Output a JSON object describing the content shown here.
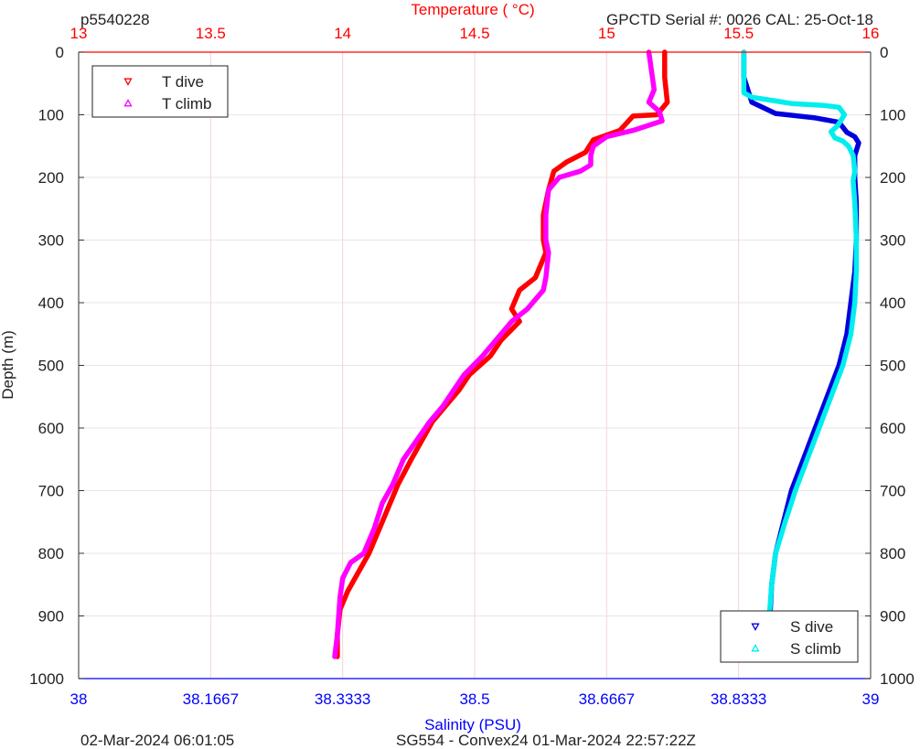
{
  "header": {
    "profile_id": "p5540228",
    "top_axis_label": "Temperature (    °C)",
    "serial_text": "GPCTD Serial #: 0026 CAL: 25-Oct-18"
  },
  "footer": {
    "plot_date": "02-Mar-2024 06:01:05",
    "mission_text": "SG554 - Convex24 01-Mar-2024 22:57:22Z"
  },
  "colors": {
    "t_dive": "#ff0000",
    "t_climb": "#ff00ff",
    "s_dive": "#0000dd",
    "s_climb": "#00eeee",
    "temperature_axis": "#ff0000",
    "salinity_axis": "#0000ff",
    "grid": "#e6e6e6",
    "temp_grid": "#f4d6d6"
  },
  "chart_data": {
    "type": "line",
    "ylabel": "Depth (m)",
    "xlabel_bottom": "Salinity (PSU)",
    "xlabel_top": "Temperature (    °C)",
    "ylim": [
      0,
      1000
    ],
    "y_reversed": true,
    "y_ticks": [
      "0",
      "100",
      "200",
      "300",
      "400",
      "500",
      "600",
      "700",
      "800",
      "900",
      "1000"
    ],
    "temperature_axis": {
      "range": [
        13,
        16
      ],
      "ticks": [
        13,
        13.5,
        14,
        14.5,
        15,
        15.5,
        16
      ],
      "tick_labels": [
        "13",
        "13.5",
        "14",
        "14.5",
        "15",
        "15.5",
        "16"
      ]
    },
    "salinity_axis": {
      "range": [
        38,
        39
      ],
      "ticks": [
        38,
        38.1667,
        38.3333,
        38.5,
        38.6667,
        38.8333,
        39
      ],
      "tick_labels": [
        "38",
        "38.1667",
        "38.3333",
        "38.5",
        "38.6667",
        "38.8333",
        "39"
      ]
    },
    "legend_temperature": {
      "placement": "top-left",
      "entries": [
        "T dive",
        "T climb"
      ]
    },
    "legend_salinity": {
      "placement": "bottom-right",
      "entries": [
        "S dive",
        "S climb"
      ]
    },
    "grid": true,
    "series": [
      {
        "name": "T dive",
        "axis": "temperature",
        "marker": "triangle-down",
        "points": [
          [
            15.22,
            0
          ],
          [
            15.22,
            40
          ],
          [
            15.23,
            80
          ],
          [
            15.19,
            100
          ],
          [
            15.1,
            102
          ],
          [
            15.05,
            125
          ],
          [
            14.95,
            140
          ],
          [
            14.92,
            160
          ],
          [
            14.85,
            175
          ],
          [
            14.8,
            190
          ],
          [
            14.78,
            220
          ],
          [
            14.76,
            260
          ],
          [
            14.76,
            300
          ],
          [
            14.77,
            320
          ],
          [
            14.73,
            360
          ],
          [
            14.67,
            380
          ],
          [
            14.64,
            410
          ],
          [
            14.67,
            430
          ],
          [
            14.6,
            460
          ],
          [
            14.56,
            485
          ],
          [
            14.48,
            515
          ],
          [
            14.44,
            540
          ],
          [
            14.39,
            565
          ],
          [
            14.34,
            590
          ],
          [
            14.3,
            620
          ],
          [
            14.26,
            650
          ],
          [
            14.21,
            690
          ],
          [
            14.18,
            720
          ],
          [
            14.14,
            760
          ],
          [
            14.1,
            800
          ],
          [
            14.06,
            830
          ],
          [
            14.02,
            860
          ],
          [
            13.99,
            890
          ],
          [
            13.98,
            930
          ],
          [
            13.98,
            965
          ]
        ]
      },
      {
        "name": "T climb",
        "axis": "temperature",
        "marker": "triangle-up",
        "points": [
          [
            15.16,
            0
          ],
          [
            15.17,
            30
          ],
          [
            15.18,
            60
          ],
          [
            15.16,
            80
          ],
          [
            15.2,
            95
          ],
          [
            15.21,
            110
          ],
          [
            15.1,
            125
          ],
          [
            15.0,
            135
          ],
          [
            14.95,
            150
          ],
          [
            14.94,
            165
          ],
          [
            14.94,
            180
          ],
          [
            14.9,
            190
          ],
          [
            14.82,
            200
          ],
          [
            14.78,
            220
          ],
          [
            14.77,
            260
          ],
          [
            14.77,
            300
          ],
          [
            14.78,
            320
          ],
          [
            14.77,
            360
          ],
          [
            14.76,
            380
          ],
          [
            14.7,
            410
          ],
          [
            14.64,
            430
          ],
          [
            14.58,
            460
          ],
          [
            14.53,
            485
          ],
          [
            14.46,
            515
          ],
          [
            14.42,
            540
          ],
          [
            14.38,
            565
          ],
          [
            14.33,
            590
          ],
          [
            14.28,
            620
          ],
          [
            14.23,
            650
          ],
          [
            14.19,
            690
          ],
          [
            14.15,
            720
          ],
          [
            14.12,
            760
          ],
          [
            14.08,
            800
          ],
          [
            14.03,
            815
          ],
          [
            14.0,
            840
          ],
          [
            13.99,
            870
          ],
          [
            13.98,
            930
          ],
          [
            13.97,
            965
          ]
        ]
      },
      {
        "name": "S dive",
        "axis": "salinity",
        "marker": "triangle-down",
        "points": [
          [
            38.84,
            0
          ],
          [
            38.84,
            40
          ],
          [
            38.85,
            80
          ],
          [
            38.88,
            98
          ],
          [
            38.93,
            105
          ],
          [
            38.96,
            112
          ],
          [
            38.97,
            128
          ],
          [
            38.98,
            135
          ],
          [
            38.985,
            145
          ],
          [
            38.98,
            165
          ],
          [
            38.98,
            200
          ],
          [
            38.982,
            240
          ],
          [
            38.982,
            300
          ],
          [
            38.98,
            350
          ],
          [
            38.975,
            400
          ],
          [
            38.97,
            450
          ],
          [
            38.96,
            500
          ],
          [
            38.945,
            550
          ],
          [
            38.93,
            600
          ],
          [
            38.915,
            650
          ],
          [
            38.9,
            700
          ],
          [
            38.89,
            750
          ],
          [
            38.88,
            800
          ],
          [
            38.875,
            850
          ],
          [
            38.873,
            900
          ],
          [
            38.872,
            965
          ]
        ]
      },
      {
        "name": "S climb",
        "axis": "salinity",
        "marker": "triangle-up",
        "points": [
          [
            38.84,
            0
          ],
          [
            38.84,
            30
          ],
          [
            38.84,
            50
          ],
          [
            38.84,
            65
          ],
          [
            38.85,
            72
          ],
          [
            38.88,
            78
          ],
          [
            38.9,
            82
          ],
          [
            38.94,
            85
          ],
          [
            38.96,
            88
          ],
          [
            38.967,
            100
          ],
          [
            38.962,
            110
          ],
          [
            38.958,
            118
          ],
          [
            38.95,
            127
          ],
          [
            38.955,
            137
          ],
          [
            38.965,
            142
          ],
          [
            38.972,
            150
          ],
          [
            38.978,
            165
          ],
          [
            38.98,
            190
          ],
          [
            38.978,
            205
          ],
          [
            38.98,
            240
          ],
          [
            38.982,
            300
          ],
          [
            38.982,
            350
          ],
          [
            38.98,
            400
          ],
          [
            38.975,
            450
          ],
          [
            38.965,
            500
          ],
          [
            38.95,
            550
          ],
          [
            38.935,
            600
          ],
          [
            38.92,
            650
          ],
          [
            38.905,
            700
          ],
          [
            38.892,
            750
          ],
          [
            38.88,
            800
          ],
          [
            38.875,
            850
          ],
          [
            38.872,
            900
          ],
          [
            38.871,
            965
          ]
        ]
      }
    ]
  }
}
